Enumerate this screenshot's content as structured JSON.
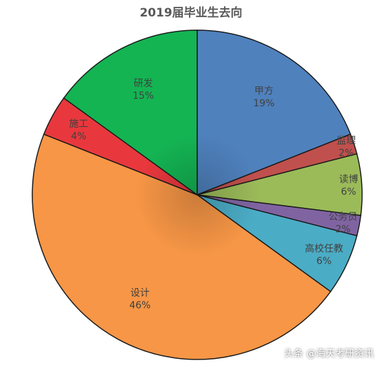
{
  "chart_data": {
    "type": "pie",
    "title": "2019届毕业生去向",
    "slices": [
      {
        "label": "甲方",
        "value": 19,
        "value_label": "19%",
        "color": "#4f81bd"
      },
      {
        "label": "监理",
        "value": 2,
        "value_label": "2%",
        "color": "#c0504d"
      },
      {
        "label": "读博",
        "value": 6,
        "value_label": "6%",
        "color": "#9bbb59"
      },
      {
        "label": "公务员",
        "value": 2,
        "value_label": "2%",
        "color": "#8064a2"
      },
      {
        "label": "高校任教",
        "value": 6,
        "value_label": "6%",
        "color": "#4bacc6"
      },
      {
        "label": "设计",
        "value": 46,
        "value_label": "46%",
        "color": "#f79646"
      },
      {
        "label": "施工",
        "value": 4,
        "value_label": "4%",
        "color": "#e8383d"
      },
      {
        "label": "研发",
        "value": 15,
        "value_label": "15%",
        "color": "#14b453"
      }
    ]
  },
  "watermark": "头条 @海天考研资讯"
}
